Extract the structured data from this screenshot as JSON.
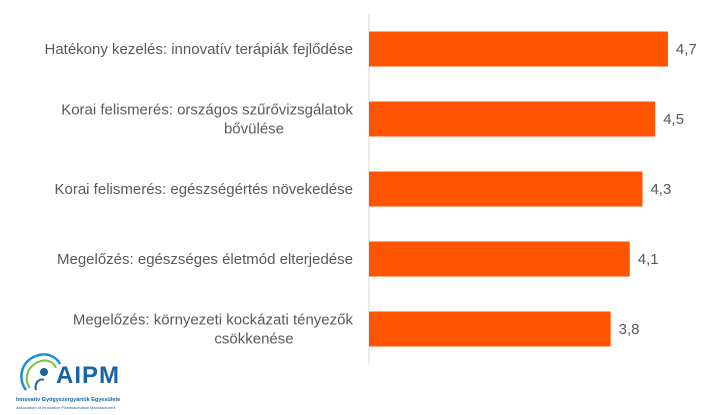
{
  "chart_data": {
    "type": "bar",
    "orientation": "horizontal",
    "categories": [
      [
        "Hatékony kezelés: innovatív terápiák fejlődése"
      ],
      [
        "Korai felismerés: országos szűrővizsgálatok",
        "bővülése"
      ],
      [
        "Korai felismerés: egészségértés növekedése"
      ],
      [
        "Megelőzés: egészséges életmód elterjedése"
      ],
      [
        "Megelőzés: környezeti kockázati tényezők",
        "csökkenése"
      ]
    ],
    "values": [
      4.7,
      4.5,
      4.3,
      4.1,
      3.8
    ],
    "value_labels": [
      "4,7",
      "4,5",
      "4,3",
      "4,1",
      "3,8"
    ],
    "bar_color": "#ff5500",
    "xlim": [
      0,
      5
    ]
  },
  "logo": {
    "name": "AIPM",
    "subtitle": "Innovatív Gyógyszergyártók Egyesülete",
    "subtitle2": "Association of Innovative Pharmaceutical Manufacturers",
    "color": "#1565a8"
  }
}
